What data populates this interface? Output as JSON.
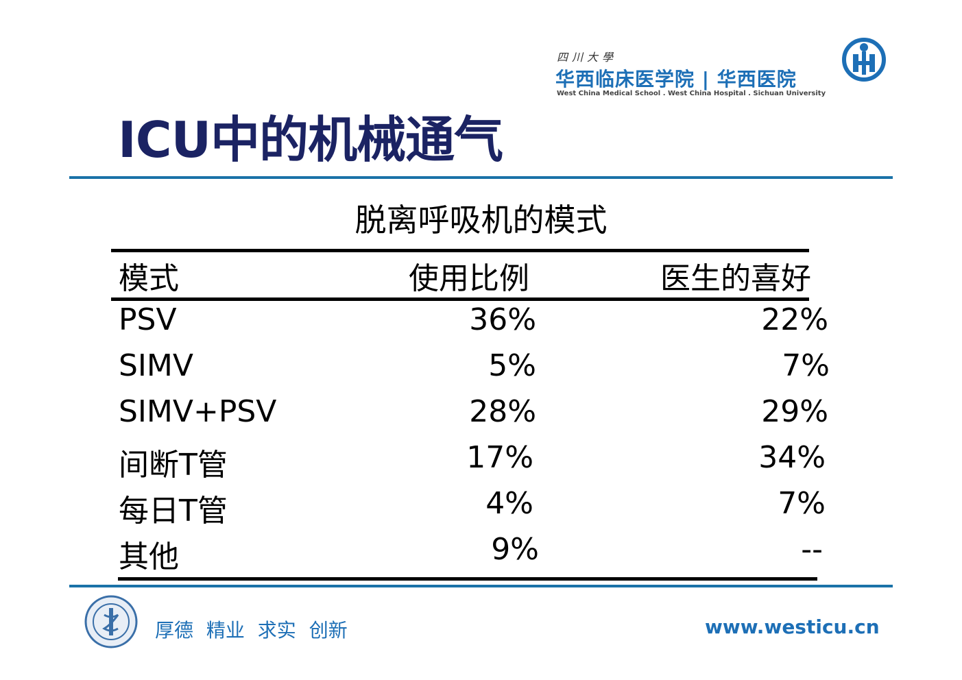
{
  "header": {
    "university_small": "四川大學",
    "institution": "华西临床医学院 | 华西医院",
    "institution_en": "West China Medical School . West China Hospital . Sichuan University",
    "brand_color": "#1d6fb6",
    "emblem_icon": "hospital-emblem-icon"
  },
  "title": "ICU中的机械通气",
  "subtitle": "脱离呼吸机的模式",
  "table": {
    "headers": [
      "模式",
      "使用比例",
      "医生的喜好"
    ],
    "rows": [
      [
        "PSV",
        "36%",
        "22%"
      ],
      [
        "SIMV",
        "5%",
        "7%"
      ],
      [
        "SIMV+PSV",
        "28%",
        "29%"
      ],
      [
        "间断T管",
        "17%",
        "34%"
      ],
      [
        "每日T管",
        "4%",
        "7%"
      ],
      [
        "其他",
        "9%",
        "--"
      ]
    ]
  },
  "footer": {
    "slogan": "厚德  精业  求实  创新",
    "url": "www.westicu.cn",
    "seal_icon": "school-seal-icon"
  },
  "colors": {
    "title": "#1b2363",
    "rule": "#1a72a8"
  }
}
